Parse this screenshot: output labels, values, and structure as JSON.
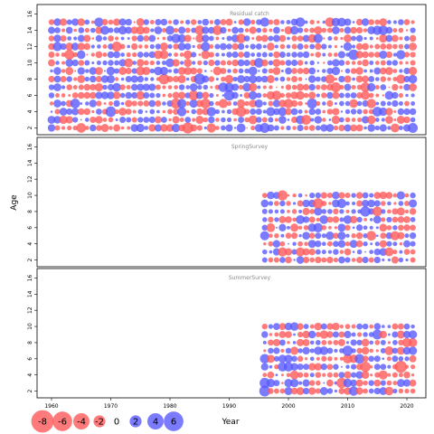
{
  "chart_data": {
    "type": "scatter",
    "subtype": "bubble residual plot",
    "xlabel": "Year",
    "ylabel": "Age",
    "x_ticks": [
      1960,
      1970,
      1980,
      1990,
      2000,
      2010,
      2020
    ],
    "y_ticks": [
      2,
      4,
      6,
      8,
      10,
      12,
      14,
      16
    ],
    "xlim": [
      1958,
      2023
    ],
    "ylim": [
      1.5,
      16.5
    ],
    "colors": {
      "negative": "#ff5a5a",
      "positive": "#5a5aff"
    },
    "legend": {
      "placement": "bottom-left",
      "entries": [
        "-8",
        "-6",
        "-4",
        "-2",
        "0",
        "2",
        "4",
        "6"
      ],
      "values": [
        -8,
        -6,
        -4,
        -2,
        0,
        2,
        4,
        6
      ]
    },
    "panels": [
      {
        "title": "Residual catch",
        "years": [
          1960,
          2021
        ],
        "ages": [
          2,
          15
        ]
      },
      {
        "title": "SpringSurvey",
        "years": [
          1996,
          2021
        ],
        "ages": [
          2,
          10
        ]
      },
      {
        "title": "SummerSurvey",
        "years": [
          1996,
          2021
        ],
        "ages": [
          2,
          10
        ]
      }
    ]
  }
}
